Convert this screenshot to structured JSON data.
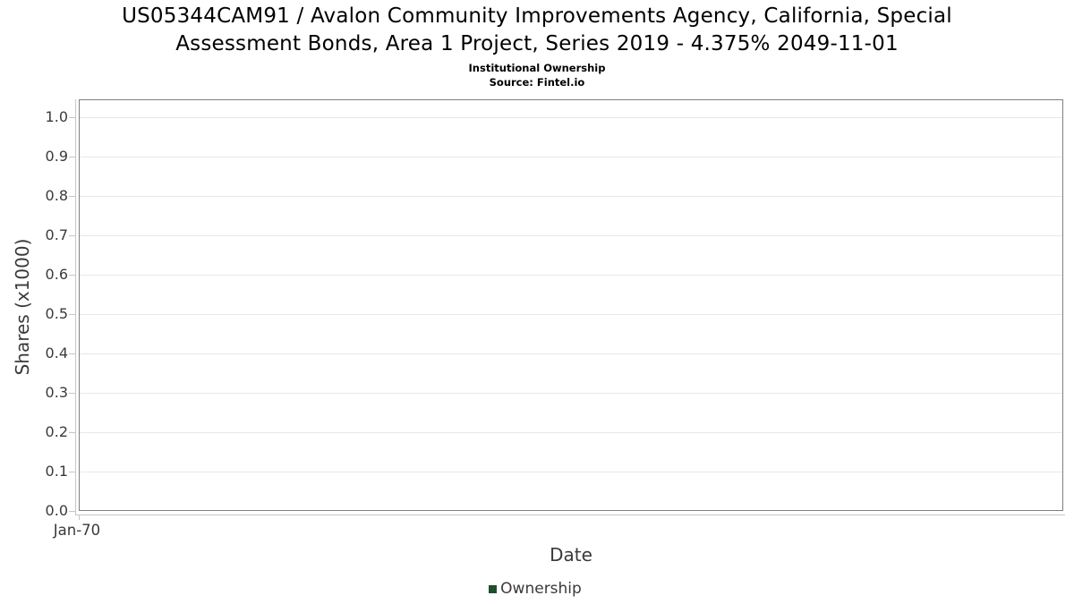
{
  "header": {
    "title_line1": "US05344CAM91 / Avalon Community Improvements Agency, California, Special",
    "title_line2": "Assessment Bonds, Area 1 Project, Series 2019 - 4.375% 2049-11-01",
    "subtitle": "Institutional Ownership",
    "source": "Source: Fintel.io"
  },
  "chart_data": {
    "type": "line",
    "title": "US05344CAM91 / Avalon Community Improvements Agency, California, Special Assessment Bonds, Area 1 Project, Series 2019 - 4.375% 2049-11-01",
    "subtitle": "Institutional Ownership",
    "source": "Source: Fintel.io",
    "xlabel": "Date",
    "ylabel": "Shares (x1000)",
    "series": [
      {
        "name": "Ownership",
        "color": "#1f4e2c",
        "x": [],
        "values": []
      }
    ],
    "xticks": [
      "Jan-70"
    ],
    "yticks": [
      "0.0",
      "0.1",
      "0.2",
      "0.3",
      "0.4",
      "0.5",
      "0.6",
      "0.7",
      "0.8",
      "0.9",
      "1.0"
    ],
    "ylim": [
      0,
      1.045
    ],
    "grid": true,
    "legend_position": "bottom",
    "colors": {
      "grid": "#e7e7e7",
      "frame": "#7f7f7f",
      "axis_line": "#c6c6c6",
      "axis_text": "#3a3a3a",
      "title_text": "#000000"
    }
  }
}
